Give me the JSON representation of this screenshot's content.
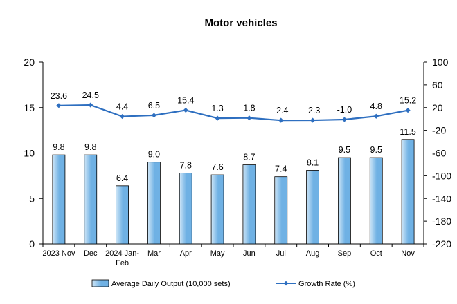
{
  "chart_data": {
    "type": "bar+line",
    "title": "Motor vehicles",
    "categories": [
      "2023 Nov",
      "Dec",
      "2024 Jan-Feb",
      "Mar",
      "Apr",
      "May",
      "Jun",
      "Jul",
      "Aug",
      "Sep",
      "Oct",
      "Nov"
    ],
    "series": [
      {
        "name": "Average Daily Output (10,000 sets)",
        "type": "bar",
        "axis": "left",
        "values": [
          9.8,
          9.8,
          6.4,
          9.0,
          7.8,
          7.6,
          8.7,
          7.4,
          8.1,
          9.5,
          9.5,
          11.5
        ],
        "labels": [
          "9.8",
          "9.8",
          "6.4",
          "9.0",
          "7.8",
          "7.6",
          "8.7",
          "7.4",
          "8.1",
          "9.5",
          "9.5",
          "11.5"
        ]
      },
      {
        "name": "Growth Rate (%)",
        "type": "line",
        "axis": "right",
        "values": [
          23.6,
          24.5,
          4.4,
          6.5,
          15.4,
          1.3,
          1.8,
          -2.4,
          -2.3,
          -1.0,
          4.8,
          15.2
        ],
        "labels": [
          "23.6",
          "24.5",
          "4.4",
          "6.5",
          "15.4",
          "1.3",
          "1.8",
          "-2.4",
          "-2.3",
          "-1.0",
          "4.8",
          "15.2"
        ]
      }
    ],
    "y_left": {
      "ylim": [
        0,
        20
      ],
      "ticks": [
        "0",
        "5",
        "10",
        "15",
        "20"
      ]
    },
    "y_right": {
      "ylim": [
        -220,
        100
      ],
      "ticks": [
        "-220",
        "-180",
        "-140",
        "-100",
        "-60",
        "-20",
        "20",
        "60",
        "100"
      ]
    },
    "grid": false,
    "legend_position": "bottom",
    "colors": {
      "bar_fill_light": "#cfe6f7",
      "bar_fill_dark": "#6fb1e4",
      "bar_stroke": "#000000",
      "line": "#2e6fc0"
    }
  }
}
